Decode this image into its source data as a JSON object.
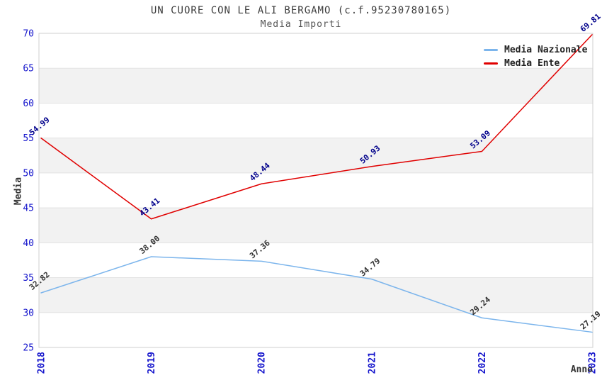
{
  "chart_data": {
    "type": "line",
    "title": "UN CUORE CON LE ALI BERGAMO (c.f.95230780165)",
    "subtitle": "Media Importi",
    "xlabel": "Anno",
    "ylabel": "Media",
    "categories": [
      "2018",
      "2019",
      "2020",
      "2021",
      "2022",
      "2023"
    ],
    "series": [
      {
        "name": "Media Nazionale",
        "color": "#7cb5ec",
        "label_color": "#333333",
        "values": [
          32.82,
          38.0,
          37.36,
          34.79,
          29.24,
          27.19
        ]
      },
      {
        "name": "Media Ente",
        "color": "#e00000",
        "label_color": "#00008b",
        "values": [
          54.99,
          43.41,
          48.44,
          50.93,
          53.09,
          69.81
        ]
      }
    ],
    "ylim": [
      25,
      70
    ],
    "ytick_step": 5,
    "grid": "alternating-horizontal-bands",
    "legend_position": "top-right",
    "colors": {
      "band_fill": "#f2f2f2",
      "gridline": "#e3e3e3",
      "plot_border": "#cfcfcf",
      "tick_label": "#1414cc",
      "background": "#ffffff"
    }
  }
}
